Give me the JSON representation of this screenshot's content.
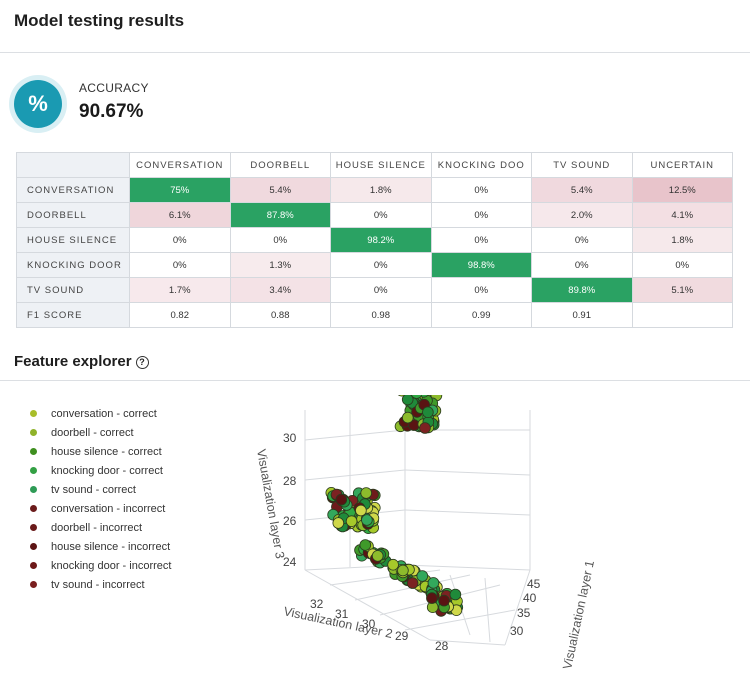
{
  "title": "Model testing results",
  "accuracy": {
    "label": "ACCURACY",
    "value": "90.67%",
    "icon": "percent-icon",
    "icon_glyph": "%"
  },
  "matrix": {
    "columns": [
      "CONVERSATION",
      "DOORBELL",
      "HOUSE SILENCE",
      "KNOCKING DOO",
      "TV SOUND",
      "UNCERTAIN"
    ],
    "rows": [
      {
        "label": "CONVERSATION",
        "cells": [
          "75%",
          "5.4%",
          "1.8%",
          "0%",
          "5.4%",
          "12.5%"
        ]
      },
      {
        "label": "DOORBELL",
        "cells": [
          "6.1%",
          "87.8%",
          "0%",
          "0%",
          "2.0%",
          "4.1%"
        ]
      },
      {
        "label": "HOUSE SILENCE",
        "cells": [
          "0%",
          "0%",
          "98.2%",
          "0%",
          "0%",
          "1.8%"
        ]
      },
      {
        "label": "KNOCKING DOOR",
        "cells": [
          "0%",
          "1.3%",
          "0%",
          "98.8%",
          "0%",
          "0%"
        ]
      },
      {
        "label": "TV SOUND",
        "cells": [
          "1.7%",
          "3.4%",
          "0%",
          "0%",
          "89.8%",
          "5.1%"
        ]
      }
    ],
    "f1": {
      "label": "F1 SCORE",
      "cells": [
        "0.82",
        "0.88",
        "0.98",
        "0.99",
        "0.91",
        ""
      ]
    },
    "colors": {
      "correct": "#2aa263",
      "error_tint": "#f4dfe2",
      "header_bg": "#eef1f5"
    }
  },
  "feature_explorer": {
    "title": "Feature explorer",
    "help_icon": "help-circle-icon",
    "help_glyph": "?",
    "legend": [
      {
        "label": "conversation - correct",
        "color": "#a8be2a"
      },
      {
        "label": "doorbell - correct",
        "color": "#8fb22a"
      },
      {
        "label": "house silence - correct",
        "color": "#3f8f1f"
      },
      {
        "label": "knocking door - correct",
        "color": "#33a044"
      },
      {
        "label": "tv sound - correct",
        "color": "#2e9b56"
      },
      {
        "label": "conversation - incorrect",
        "color": "#6b1c1c"
      },
      {
        "label": "doorbell - incorrect",
        "color": "#6a1a1a"
      },
      {
        "label": "house silence - incorrect",
        "color": "#5c1414"
      },
      {
        "label": "knocking door - incorrect",
        "color": "#6d1818"
      },
      {
        "label": "tv sound - incorrect",
        "color": "#7a1f1f"
      }
    ]
  },
  "chart_data": {
    "type": "scatter",
    "title": "",
    "axes": {
      "x": {
        "label": "Visualization layer 2",
        "ticks": [
          "32",
          "31",
          "30",
          "29",
          "28"
        ]
      },
      "y": {
        "label": "Visualization layer 1",
        "ticks": [
          "30",
          "35",
          "40",
          "45"
        ]
      },
      "z": {
        "label": "Visualization layer 3",
        "ticks": [
          "24",
          "26",
          "28",
          "30"
        ]
      }
    },
    "clusters": [
      {
        "name": "top cluster",
        "layer2": 29.7,
        "layer1": 35,
        "layer3": 29.6
      },
      {
        "name": "upper-left cluster",
        "layer2": 31.3,
        "layer1": 38,
        "layer3": 26.2
      },
      {
        "name": "middle diagonal",
        "layer2": 30.2,
        "layer1": 36,
        "layer3": 24.5
      },
      {
        "name": "lower-right cluster",
        "layer2": 29.0,
        "layer1": 33,
        "layer3": 23.6
      }
    ],
    "grid": true
  }
}
